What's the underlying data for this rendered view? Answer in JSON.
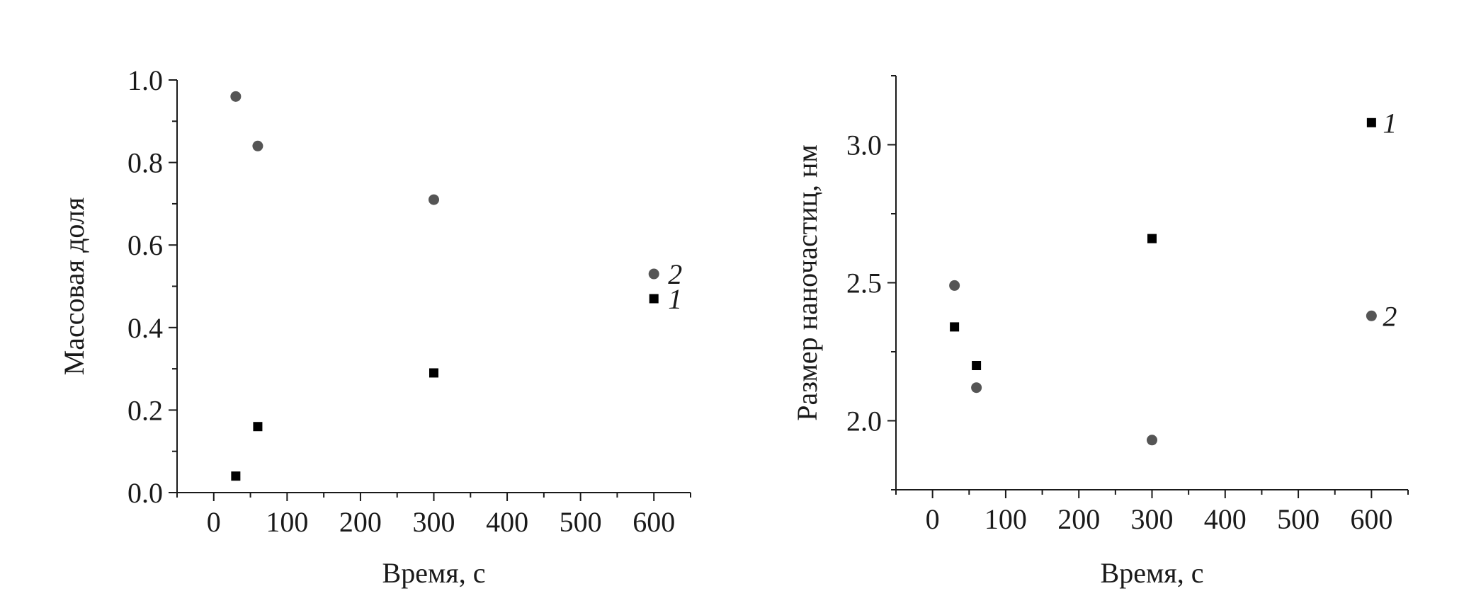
{
  "chart_data": [
    {
      "type": "scatter",
      "title": "",
      "xlabel": "Время, с",
      "ylabel": "Массовая доля",
      "xlim": [
        -50,
        650
      ],
      "ylim": [
        0.0,
        1.0
      ],
      "xticks": [
        "0",
        "100",
        "200",
        "300",
        "400",
        "500",
        "600"
      ],
      "yticks": [
        "0.0",
        "0.2",
        "0.4",
        "0.6",
        "0.8",
        "1.0"
      ],
      "grid": false,
      "legend": "none",
      "series": [
        {
          "name": "1",
          "marker": "square",
          "color": "#000000",
          "x": [
            30,
            60,
            300,
            600
          ],
          "y": [
            0.04,
            0.16,
            0.29,
            0.47
          ]
        },
        {
          "name": "2",
          "marker": "circle",
          "color": "#555555",
          "x": [
            30,
            60,
            300,
            600
          ],
          "y": [
            0.96,
            0.84,
            0.71,
            0.53
          ]
        }
      ]
    },
    {
      "type": "scatter",
      "title": "",
      "xlabel": "Время, с",
      "ylabel": "Размер наночастиц, нм",
      "xlim": [
        -50,
        650
      ],
      "ylim": [
        1.75,
        3.25
      ],
      "xticks": [
        "0",
        "100",
        "200",
        "300",
        "400",
        "500",
        "600"
      ],
      "yticks": [
        "2.0",
        "2.5",
        "3.0"
      ],
      "grid": false,
      "legend": "none",
      "series": [
        {
          "name": "1",
          "marker": "square",
          "color": "#000000",
          "x": [
            30,
            60,
            300,
            600
          ],
          "y": [
            2.34,
            2.2,
            2.66,
            3.08
          ]
        },
        {
          "name": "2",
          "marker": "circle",
          "color": "#555555",
          "x": [
            30,
            60,
            300,
            600
          ],
          "y": [
            2.49,
            2.12,
            1.93,
            2.38
          ]
        }
      ]
    }
  ]
}
